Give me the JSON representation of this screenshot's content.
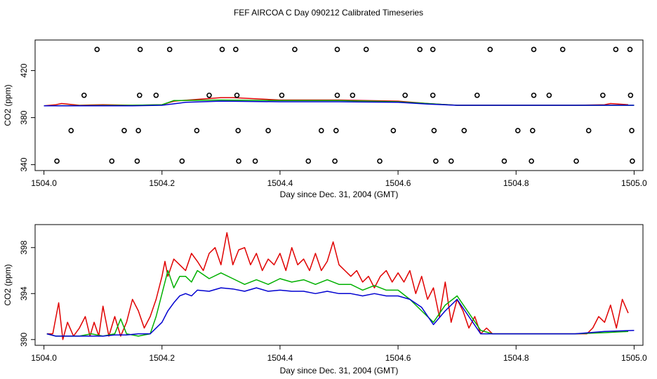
{
  "page_title": "FEF AIRCOA C  Day 090212  Calibrated Timeseries",
  "chart_data": [
    {
      "type": "line",
      "panel": "top",
      "title": "",
      "xlabel": "Day since Dec. 31, 2004 (GMT)",
      "ylabel": "CO2 (ppm)",
      "xlim": [
        1503.985,
        1505.015
      ],
      "ylim": [
        335,
        446
      ],
      "xticks": [
        1504.0,
        1504.2,
        1504.4,
        1504.6,
        1504.8,
        1505.0
      ],
      "xtick_labels": [
        "1504.0",
        "1504.2",
        "1504.4",
        "1504.6",
        "1504.8",
        "1505.0"
      ],
      "yticks": [
        340,
        380,
        420
      ],
      "ytick_labels": [
        "340",
        "380",
        "420"
      ],
      "series": [
        {
          "name": "red",
          "color": "#e00000",
          "x": [
            1504.0,
            1504.02,
            1504.03,
            1504.06,
            1504.1,
            1504.15,
            1504.2,
            1504.22,
            1504.3,
            1504.32,
            1504.4,
            1504.5,
            1504.6,
            1504.65,
            1504.7,
            1504.8,
            1504.9,
            1504.95,
            1504.96,
            1504.99
          ],
          "y": [
            390,
            391,
            392,
            390.5,
            391,
            390.5,
            391,
            394,
            397,
            397,
            395,
            395,
            394,
            392,
            390.5,
            390.5,
            390.5,
            391,
            392,
            391
          ]
        },
        {
          "name": "green",
          "color": "#00b000",
          "x": [
            1504.0,
            1504.15,
            1504.2,
            1504.22,
            1504.3,
            1504.4,
            1504.5,
            1504.6,
            1504.65,
            1504.7,
            1504.8,
            1505.0
          ],
          "y": [
            390,
            390.5,
            391,
            394.5,
            395,
            394.5,
            394.5,
            393.5,
            392,
            390.5,
            390.5,
            390.5
          ]
        },
        {
          "name": "blue",
          "color": "#0000d0",
          "x": [
            1504.0,
            1504.15,
            1504.2,
            1504.24,
            1504.3,
            1504.4,
            1504.5,
            1504.6,
            1504.65,
            1504.7,
            1504.8,
            1505.0
          ],
          "y": [
            390,
            390,
            390.5,
            393,
            394,
            393.5,
            393.5,
            393,
            391.5,
            390.5,
            390.5,
            390.5
          ]
        },
        {
          "name": "circles",
          "marker": "o",
          "color": "#000000",
          "x": [
            1504.09,
            1504.163,
            1504.213,
            1504.302,
            1504.325,
            1504.425,
            1504.497,
            1504.546,
            1504.637,
            1504.659,
            1504.756,
            1504.83,
            1504.879,
            1504.969,
            1504.993,
            1504.068,
            1504.162,
            1504.19,
            1504.28,
            1504.327,
            1504.403,
            1504.497,
            1504.523,
            1504.612,
            1504.659,
            1504.734,
            1504.83,
            1504.856,
            1504.947,
            1504.994,
            1504.046,
            1504.136,
            1504.16,
            1504.259,
            1504.329,
            1504.38,
            1504.47,
            1504.495,
            1504.592,
            1504.661,
            1504.712,
            1504.803,
            1504.828,
            1504.923,
            1504.996,
            1504.022,
            1504.115,
            1504.158,
            1504.234,
            1504.33,
            1504.358,
            1504.448,
            1504.493,
            1504.569,
            1504.664,
            1504.69,
            1504.78,
            1504.826,
            1504.902,
            1504.997
          ],
          "y": [
            438,
            438,
            438,
            438,
            438,
            438,
            438,
            438,
            438,
            438,
            438,
            438,
            438,
            438,
            438,
            399,
            399,
            399,
            399,
            399,
            399,
            399,
            399,
            399,
            399,
            399,
            399,
            399,
            399,
            399,
            369,
            369,
            369,
            369,
            369,
            369,
            369,
            369,
            369,
            369,
            369,
            369,
            369,
            369,
            369,
            343,
            343,
            343,
            343,
            343,
            343,
            343,
            343,
            343,
            343,
            343,
            343,
            343,
            343,
            343
          ]
        }
      ]
    },
    {
      "type": "line",
      "panel": "bottom",
      "title": "",
      "xlabel": "Day since Dec. 31, 2004 (GMT)",
      "ylabel": "CO2 (ppm)",
      "xlim": [
        1503.985,
        1505.015
      ],
      "ylim": [
        389.5,
        400
      ],
      "xticks": [
        1504.0,
        1504.2,
        1504.4,
        1504.6,
        1504.8,
        1505.0
      ],
      "xtick_labels": [
        "1504.0",
        "1504.2",
        "1504.4",
        "1504.6",
        "1504.8",
        "1505.0"
      ],
      "yticks": [
        390,
        394,
        398
      ],
      "ytick_labels": [
        "390",
        "394",
        "398"
      ],
      "series": [
        {
          "name": "red",
          "color": "#e00000",
          "x": [
            1504.005,
            1504.015,
            1504.025,
            1504.032,
            1504.04,
            1504.05,
            1504.06,
            1504.07,
            1504.078,
            1504.085,
            1504.093,
            1504.1,
            1504.11,
            1504.12,
            1504.13,
            1504.14,
            1504.15,
            1504.16,
            1504.17,
            1504.18,
            1504.19,
            1504.2,
            1504.205,
            1504.21,
            1504.22,
            1504.23,
            1504.24,
            1504.25,
            1504.26,
            1504.27,
            1504.28,
            1504.29,
            1504.3,
            1504.31,
            1504.32,
            1504.33,
            1504.34,
            1504.35,
            1504.36,
            1504.37,
            1504.38,
            1504.39,
            1504.4,
            1504.41,
            1504.42,
            1504.43,
            1504.44,
            1504.45,
            1504.46,
            1504.47,
            1504.48,
            1504.49,
            1504.5,
            1504.51,
            1504.52,
            1504.53,
            1504.54,
            1504.55,
            1504.56,
            1504.57,
            1504.58,
            1504.59,
            1504.6,
            1504.61,
            1504.62,
            1504.63,
            1504.64,
            1504.65,
            1504.66,
            1504.67,
            1504.68,
            1504.69,
            1504.7,
            1504.71,
            1504.72,
            1504.73,
            1504.74,
            1504.75,
            1504.76,
            1504.78,
            1504.8,
            1504.82,
            1504.84,
            1504.86,
            1504.88,
            1504.9,
            1504.92,
            1504.93,
            1504.94,
            1504.95,
            1504.96,
            1504.97,
            1504.98,
            1504.99
          ],
          "y": [
            390.5,
            390.5,
            393.2,
            390,
            391.5,
            390.3,
            391,
            392,
            390.3,
            391.5,
            390.3,
            392.9,
            390.3,
            392,
            390.3,
            391.5,
            393.5,
            392.5,
            391,
            392,
            393.5,
            395.5,
            396.8,
            395.5,
            397,
            396.5,
            396,
            397.5,
            396.8,
            396,
            397.5,
            398,
            396.5,
            399.3,
            396.5,
            397.8,
            398,
            396.5,
            397.5,
            396,
            397,
            396.5,
            397.5,
            396,
            398,
            396.5,
            397,
            396,
            397.5,
            396,
            396.8,
            398.5,
            396.5,
            396,
            395.5,
            396,
            395,
            395.5,
            394.5,
            395.5,
            396,
            395,
            395.8,
            395,
            396,
            394,
            395.5,
            393.5,
            394.5,
            392,
            395,
            391.5,
            393.5,
            392.5,
            391,
            392,
            390.5,
            391,
            390.5,
            390.5,
            390.5,
            390.5,
            390.5,
            390.5,
            390.5,
            390.5,
            390.5,
            391,
            392,
            391.5,
            393,
            391,
            393.5,
            392.3
          ]
        },
        {
          "name": "green",
          "color": "#00b000",
          "x": [
            1504.005,
            1504.02,
            1504.04,
            1504.06,
            1504.08,
            1504.1,
            1504.12,
            1504.13,
            1504.14,
            1504.16,
            1504.18,
            1504.19,
            1504.2,
            1504.21,
            1504.22,
            1504.23,
            1504.24,
            1504.25,
            1504.26,
            1504.28,
            1504.3,
            1504.32,
            1504.34,
            1504.36,
            1504.38,
            1504.4,
            1504.42,
            1504.44,
            1504.46,
            1504.48,
            1504.5,
            1504.52,
            1504.54,
            1504.56,
            1504.58,
            1504.6,
            1504.62,
            1504.64,
            1504.66,
            1504.68,
            1504.7,
            1504.72,
            1504.74,
            1504.76,
            1504.8,
            1504.85,
            1504.9,
            1504.95,
            1504.99
          ],
          "y": [
            390.5,
            390.3,
            390.3,
            390.3,
            390.5,
            390.3,
            390.5,
            391.8,
            390.5,
            390.3,
            390.5,
            392,
            394,
            396,
            394.5,
            395.5,
            395.5,
            395,
            396,
            395.3,
            395.8,
            395.3,
            394.8,
            395.2,
            394.8,
            395.3,
            395,
            395.2,
            394.8,
            395.2,
            394.8,
            394.8,
            394.3,
            394.7,
            394.3,
            394.3,
            393.5,
            392.5,
            391.5,
            393,
            393.8,
            392.3,
            390.8,
            390.5,
            390.5,
            390.5,
            390.5,
            390.6,
            390.7
          ]
        },
        {
          "name": "blue",
          "color": "#0000d0",
          "x": [
            1504.005,
            1504.02,
            1504.04,
            1504.06,
            1504.08,
            1504.1,
            1504.12,
            1504.14,
            1504.16,
            1504.18,
            1504.2,
            1504.21,
            1504.22,
            1504.23,
            1504.24,
            1504.25,
            1504.26,
            1504.28,
            1504.3,
            1504.32,
            1504.34,
            1504.36,
            1504.38,
            1504.4,
            1504.42,
            1504.44,
            1504.46,
            1504.48,
            1504.5,
            1504.52,
            1504.54,
            1504.56,
            1504.58,
            1504.6,
            1504.62,
            1504.64,
            1504.66,
            1504.68,
            1504.7,
            1504.72,
            1504.74,
            1504.76,
            1504.8,
            1504.85,
            1504.9,
            1504.95,
            1505.0
          ],
          "y": [
            390.5,
            390.3,
            390.3,
            390.3,
            390.3,
            390.3,
            390.4,
            390.4,
            390.5,
            390.5,
            391.5,
            392.5,
            393.2,
            393.8,
            394,
            393.8,
            394.3,
            394.2,
            394.5,
            394.4,
            394.2,
            394.5,
            394.2,
            394.3,
            394.2,
            394.2,
            394,
            394.2,
            394,
            394,
            393.8,
            394,
            393.8,
            393.8,
            393.5,
            392.8,
            391.3,
            392.5,
            393.5,
            392,
            390.5,
            390.5,
            390.5,
            390.5,
            390.5,
            390.7,
            390.8
          ]
        }
      ]
    }
  ]
}
